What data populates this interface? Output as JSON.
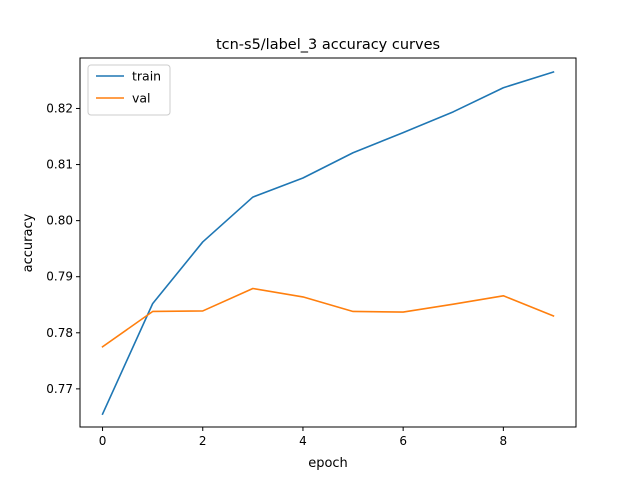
{
  "chart_data": {
    "type": "line",
    "title": "tcn-s5/label_3 accuracy curves",
    "xlabel": "epoch",
    "ylabel": "accuracy",
    "x": [
      0,
      1,
      2,
      3,
      4,
      5,
      6,
      7,
      8,
      9
    ],
    "xlim": [
      -0.45,
      9.45
    ],
    "ylim": [
      0.7632,
      0.829
    ],
    "xticks": [
      0,
      2,
      4,
      6,
      8
    ],
    "yticks": [
      0.77,
      0.78,
      0.79,
      0.8,
      0.81,
      0.82
    ],
    "ytick_labels": [
      "0.77",
      "0.78",
      "0.79",
      "0.80",
      "0.81",
      "0.82"
    ],
    "grid": false,
    "legend_position": "upper-left",
    "series": [
      {
        "name": "train",
        "color": "#1f77b4",
        "values": [
          0.7655,
          0.7852,
          0.7962,
          0.8042,
          0.8076,
          0.8121,
          0.8157,
          0.8194,
          0.8237,
          0.8265
        ]
      },
      {
        "name": "val",
        "color": "#ff7f0e",
        "values": [
          0.7775,
          0.7838,
          0.7839,
          0.7879,
          0.7864,
          0.7838,
          0.7837,
          0.7851,
          0.7866,
          0.783
        ]
      }
    ]
  }
}
